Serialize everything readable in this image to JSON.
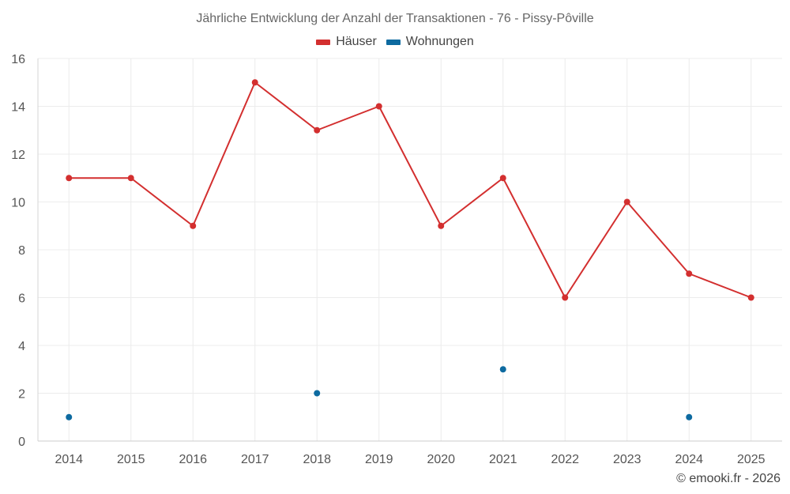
{
  "chart_data": {
    "type": "line",
    "title": "Jährliche Entwicklung der Anzahl der Transaktionen - 76 - Pissy-Pôville",
    "x": [
      2014,
      2015,
      2016,
      2017,
      2018,
      2019,
      2020,
      2021,
      2022,
      2023,
      2024,
      2025
    ],
    "x_tick_labels": [
      "2014",
      "2015",
      "2016",
      "2017",
      "2018",
      "2019",
      "2020",
      "2021",
      "2022",
      "2023",
      "2024",
      "2025"
    ],
    "ylim": [
      0,
      16
    ],
    "y_ticks": [
      0,
      2,
      4,
      6,
      8,
      10,
      12,
      14,
      16
    ],
    "grid": true,
    "legend_position": "top-center",
    "series": [
      {
        "name": "Häuser",
        "color": "#d32f2f",
        "style": "line",
        "values": [
          11,
          11,
          9,
          15,
          13,
          14,
          9,
          11,
          6,
          10,
          7,
          6
        ]
      },
      {
        "name": "Wohnungen",
        "color": "#0d6aa0",
        "style": "points",
        "values": [
          1,
          null,
          null,
          null,
          2,
          null,
          null,
          3,
          null,
          null,
          1,
          null
        ]
      }
    ]
  },
  "credit": "© emooki.fr - 2026"
}
